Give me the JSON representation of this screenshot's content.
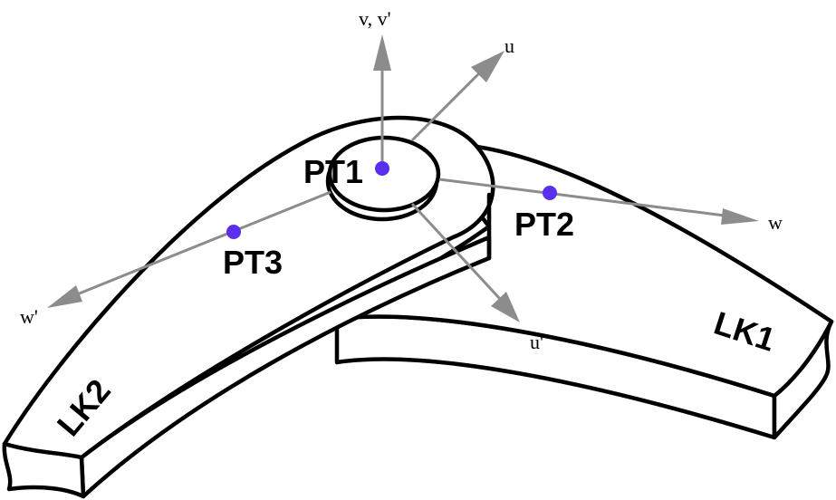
{
  "colors": {
    "point": "#5a2ef0",
    "axis": "#8c8c8c",
    "outline": "#000000",
    "background": "#ffffff"
  },
  "points": {
    "pt1": "PT1",
    "pt2": "PT2",
    "pt3": "PT3"
  },
  "links": {
    "lk1": "LK1",
    "lk2": "LK2"
  },
  "axes": {
    "v": "v, v'",
    "u": "u",
    "u_prime": "u'",
    "w": "w",
    "w_prime": "w'"
  }
}
